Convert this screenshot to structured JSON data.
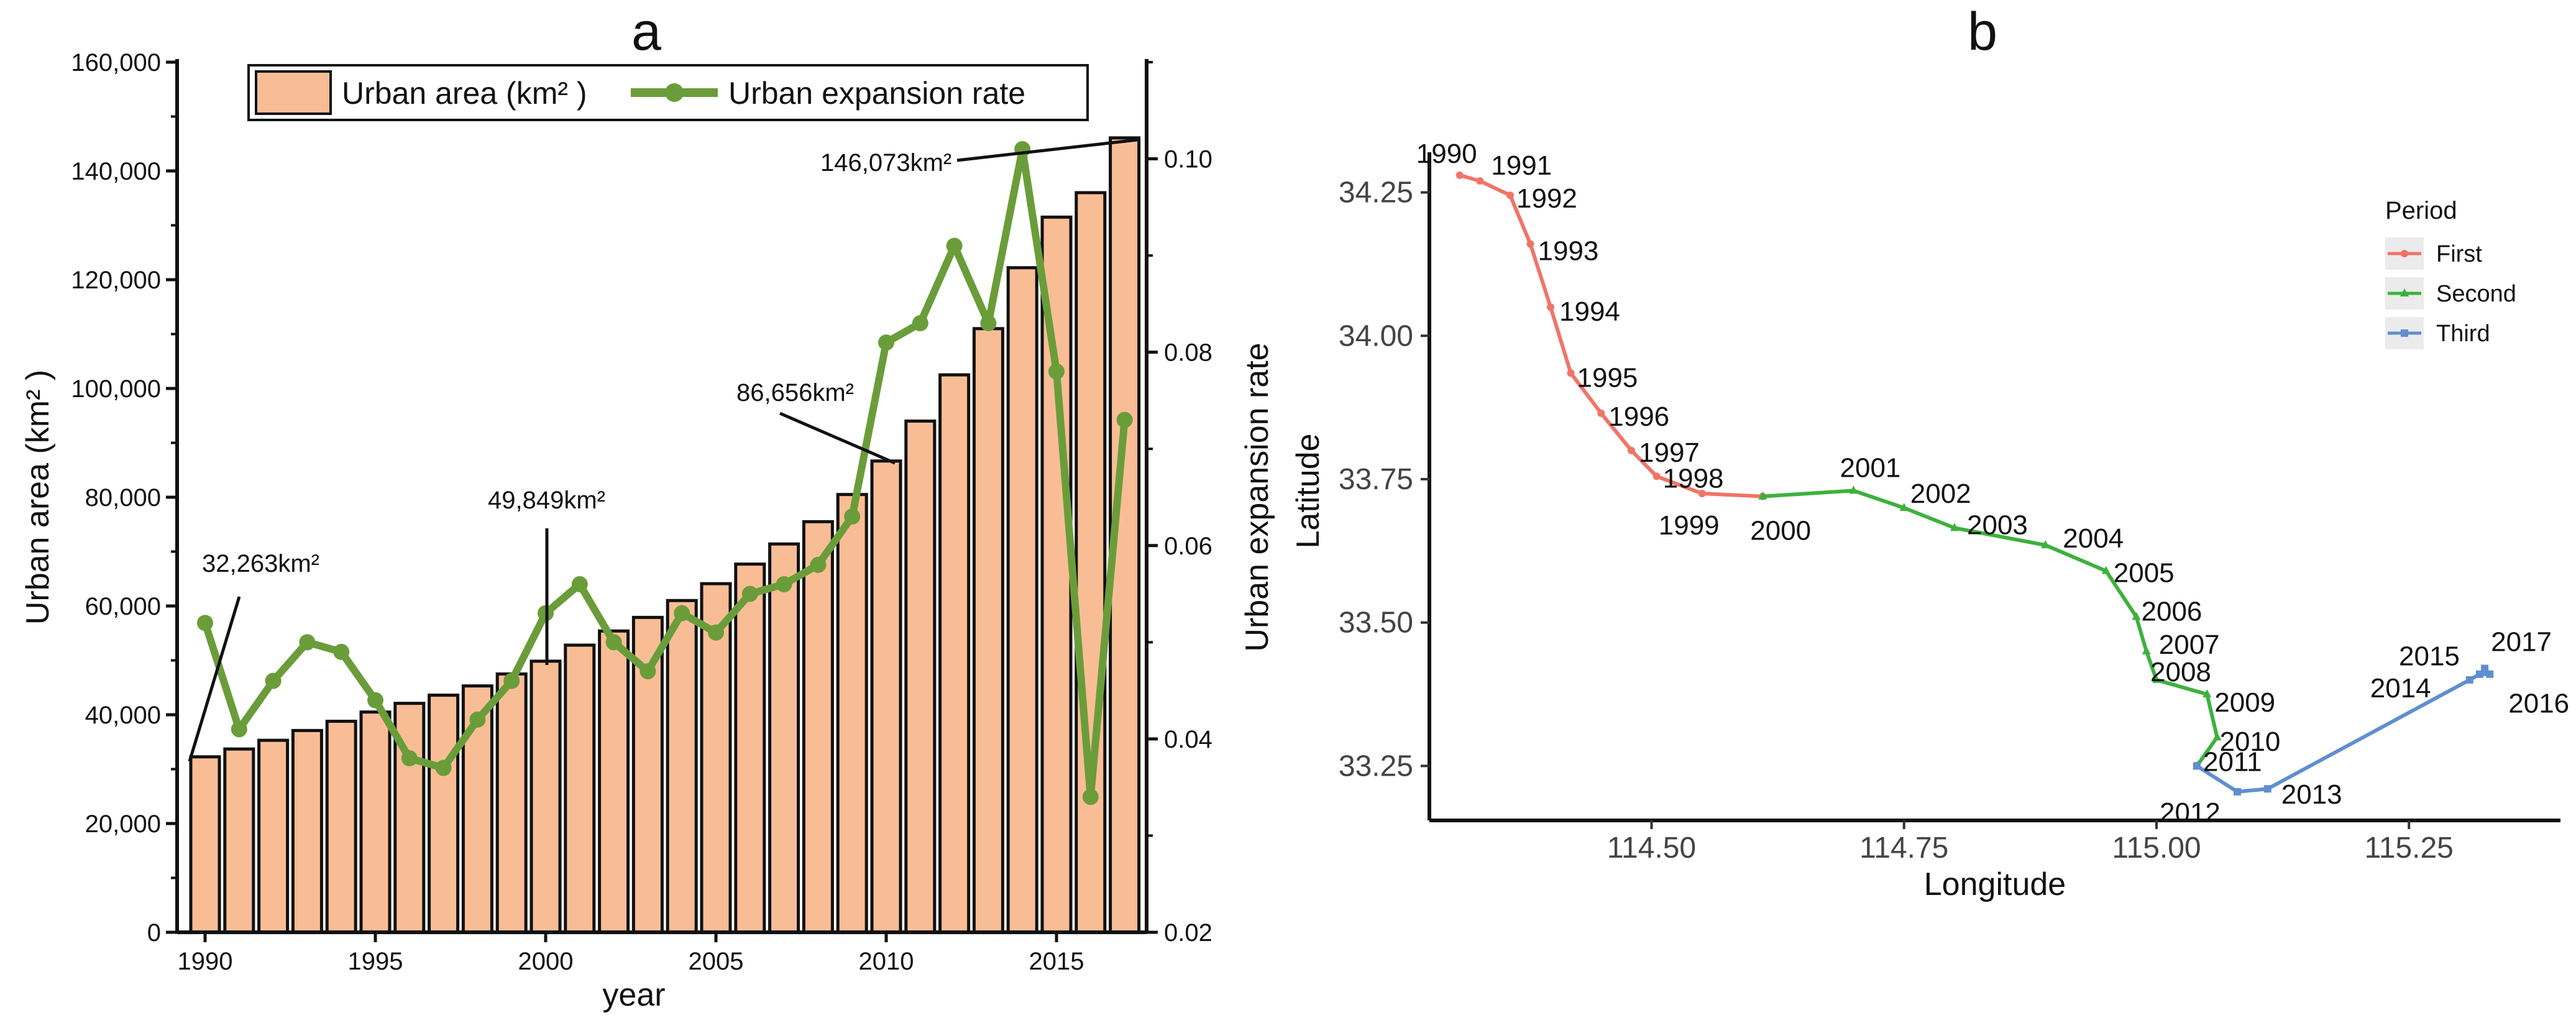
{
  "chart_data": [
    {
      "panel": "a",
      "type": "bar+line",
      "title": "a",
      "xlabel": "year",
      "ylabel": "Urban area (km² )",
      "y2label": "Urban expansion rate",
      "ylim": [
        0,
        160000
      ],
      "y2lim": [
        0.02,
        0.11
      ],
      "xticks": [
        1990,
        1995,
        2000,
        2005,
        2010,
        2015
      ],
      "yticks": [
        0,
        20000,
        40000,
        60000,
        80000,
        100000,
        120000,
        140000,
        160000
      ],
      "ytick_labels": [
        "0",
        "20,000",
        "40,000",
        "60,000",
        "80,000",
        "100,000",
        "120,000",
        "140,000",
        "160,000"
      ],
      "y2ticks": [
        0.02,
        0.04,
        0.06,
        0.08,
        0.1
      ],
      "y2tick_labels": [
        "0.02",
        "0.04",
        "0.06",
        "0.08",
        "0.10"
      ],
      "legend": [
        "Urban area (km² )",
        "Urban expansion rate"
      ],
      "colors": {
        "bar": "#f9bd96",
        "bar_edge": "#111111",
        "line": "#6a9d3a"
      },
      "years": [
        1990,
        1991,
        1992,
        1993,
        1994,
        1995,
        1996,
        1997,
        1998,
        1999,
        2000,
        2001,
        2002,
        2003,
        2004,
        2005,
        2006,
        2007,
        2008,
        2009,
        2010,
        2011,
        2012,
        2013,
        2014,
        2015,
        2016,
        2017
      ],
      "series": [
        {
          "name": "Urban area (km² )",
          "axis": "left",
          "kind": "bar",
          "values": [
            32263,
            33700,
            35300,
            37100,
            38800,
            40500,
            42100,
            43600,
            45300,
            47500,
            49849,
            52800,
            55400,
            57900,
            61000,
            64100,
            67700,
            71400,
            75500,
            80500,
            86656,
            94000,
            102500,
            111000,
            122200,
            131500,
            136000,
            146073
          ]
        },
        {
          "name": "Urban expansion rate",
          "axis": "right",
          "kind": "line",
          "values": [
            0.052,
            0.041,
            0.046,
            0.05,
            0.049,
            0.044,
            0.038,
            0.037,
            0.042,
            0.046,
            0.053,
            0.056,
            0.05,
            0.047,
            0.053,
            0.051,
            0.055,
            0.056,
            0.058,
            0.063,
            0.081,
            0.083,
            0.091,
            0.083,
            0.101,
            0.078,
            0.034,
            0.073
          ]
        }
      ],
      "annotations": [
        {
          "text": "32,263km²",
          "year": 1990
        },
        {
          "text": "49,849km²",
          "year": 2000
        },
        {
          "text": "86,656km²",
          "year": 2010
        },
        {
          "text": "146,073km²",
          "year": 2017
        }
      ]
    },
    {
      "panel": "b",
      "type": "line",
      "title": "b",
      "xlabel": "Longitude",
      "ylabel": "Latitude",
      "xlim": [
        114.28,
        115.4
      ],
      "ylim": [
        33.155,
        34.32
      ],
      "xticks": [
        114.5,
        114.75,
        115.0,
        115.25
      ],
      "xtick_labels": [
        "114.50",
        "114.75",
        "115.00",
        "115.25"
      ],
      "yticks": [
        33.25,
        33.5,
        33.75,
        34.0,
        34.25
      ],
      "ytick_labels": [
        "33.25",
        "33.50",
        "33.75",
        "34.00",
        "34.25"
      ],
      "legend": {
        "title": "Period",
        "entries": [
          "First",
          "Second",
          "Third"
        ]
      },
      "colors": {
        "First": "#f07468",
        "Second": "#3db13d",
        "Third": "#5f8fcf"
      },
      "series": [
        {
          "name": "First",
          "marker": "circle",
          "points": [
            {
              "year": "1990",
              "lon": 114.31,
              "lat": 34.28
            },
            {
              "year": "1991",
              "lon": 114.33,
              "lat": 34.27
            },
            {
              "year": "1992",
              "lon": 114.36,
              "lat": 34.245
            },
            {
              "year": "1993",
              "lon": 114.38,
              "lat": 34.16
            },
            {
              "year": "1994",
              "lon": 114.4,
              "lat": 34.05
            },
            {
              "year": "1995",
              "lon": 114.42,
              "lat": 33.935
            },
            {
              "year": "1996",
              "lon": 114.45,
              "lat": 33.865
            },
            {
              "year": "1997",
              "lon": 114.48,
              "lat": 33.8
            },
            {
              "year": "1998",
              "lon": 114.505,
              "lat": 33.755
            },
            {
              "year": "1999",
              "lon": 114.55,
              "lat": 33.725
            },
            {
              "year": "2000",
              "lon": 114.61,
              "lat": 33.72
            }
          ]
        },
        {
          "name": "Second",
          "marker": "triangle",
          "points": [
            {
              "year": "2000",
              "lon": 114.61,
              "lat": 33.72
            },
            {
              "year": "2001",
              "lon": 114.7,
              "lat": 33.73
            },
            {
              "year": "2002",
              "lon": 114.75,
              "lat": 33.7
            },
            {
              "year": "2003",
              "lon": 114.8,
              "lat": 33.665
            },
            {
              "year": "2004",
              "lon": 114.89,
              "lat": 33.635
            },
            {
              "year": "2005",
              "lon": 114.95,
              "lat": 33.59
            },
            {
              "year": "2006",
              "lon": 114.98,
              "lat": 33.51
            },
            {
              "year": "2007",
              "lon": 114.99,
              "lat": 33.45
            },
            {
              "year": "2008",
              "lon": 115.0,
              "lat": 33.4
            },
            {
              "year": "2009",
              "lon": 115.05,
              "lat": 33.375
            },
            {
              "year": "2010",
              "lon": 115.06,
              "lat": 33.3
            },
            {
              "year": "2011",
              "lon": 115.04,
              "lat": 33.25
            }
          ]
        },
        {
          "name": "Third",
          "marker": "square",
          "points": [
            {
              "year": "2011",
              "lon": 115.04,
              "lat": 33.25
            },
            {
              "year": "2012",
              "lon": 115.08,
              "lat": 33.205
            },
            {
              "year": "2013",
              "lon": 115.11,
              "lat": 33.21
            },
            {
              "year": "2014",
              "lon": 115.31,
              "lat": 33.4
            },
            {
              "year": "2015",
              "lon": 115.32,
              "lat": 33.41
            },
            {
              "year": "2016",
              "lon": 115.33,
              "lat": 33.41
            },
            {
              "year": "2017",
              "lon": 115.325,
              "lat": 33.42
            }
          ]
        }
      ]
    }
  ]
}
